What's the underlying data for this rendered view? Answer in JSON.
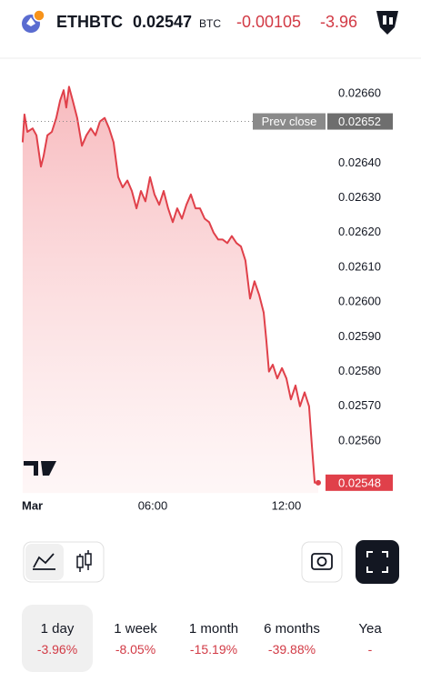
{
  "header": {
    "symbol": "ETHBTC",
    "price": "0.02547",
    "currency": "BTC",
    "change": "-0.00105",
    "change_percent": "-3.96"
  },
  "chart_data": {
    "type": "line",
    "color": "#e0404a",
    "x": [
      0.16,
      0.24,
      0.37,
      0.61,
      0.78,
      0.98,
      1.1,
      1.27,
      1.47,
      1.67,
      1.84,
      2.0,
      2.12,
      2.24,
      2.41,
      2.61,
      2.82,
      3.02,
      3.22,
      3.43,
      3.63,
      3.84,
      4.04,
      4.24,
      4.45,
      4.65,
      4.86,
      5.06,
      5.27,
      5.47,
      5.67,
      5.88,
      6.08,
      6.29,
      6.49,
      6.69,
      6.9,
      7.1,
      7.31,
      7.51,
      7.71,
      7.92,
      8.12,
      8.33,
      8.53,
      8.73,
      8.94,
      9.14,
      9.35,
      9.55,
      9.76,
      9.96,
      10.16,
      10.37,
      10.57,
      10.78,
      10.98,
      11.1,
      11.22,
      11.39,
      11.59,
      11.8,
      12.0,
      12.2,
      12.41,
      12.61,
      12.82,
      13.02,
      13.14,
      13.27,
      13.43
    ],
    "values": [
      0.02646,
      0.02654,
      0.02649,
      0.0265,
      0.02648,
      0.02639,
      0.02642,
      0.02648,
      0.02649,
      0.02653,
      0.02658,
      0.02661,
      0.02656,
      0.02662,
      0.02658,
      0.02653,
      0.02645,
      0.02648,
      0.0265,
      0.02648,
      0.02652,
      0.02653,
      0.0265,
      0.02646,
      0.02636,
      0.02633,
      0.02635,
      0.02632,
      0.02627,
      0.02632,
      0.02629,
      0.02636,
      0.02631,
      0.02628,
      0.02632,
      0.02627,
      0.02623,
      0.02627,
      0.02624,
      0.02628,
      0.02631,
      0.02627,
      0.02627,
      0.02624,
      0.02623,
      0.0262,
      0.02618,
      0.02618,
      0.02617,
      0.02619,
      0.02617,
      0.02616,
      0.02612,
      0.02601,
      0.02606,
      0.02602,
      0.02597,
      0.02589,
      0.0258,
      0.02582,
      0.02578,
      0.02581,
      0.02578,
      0.02572,
      0.02576,
      0.0257,
      0.02574,
      0.0257,
      0.02559,
      0.02548,
      0.02548
    ],
    "xlim": [
      0,
      13.9
    ],
    "xticks": [
      {
        "value": 0,
        "label": "Mar"
      },
      {
        "value": 6,
        "label": "06:00"
      },
      {
        "value": 12,
        "label": "12:00"
      }
    ],
    "ylim": [
      0.02545,
      0.0267
    ],
    "yticks": [
      {
        "value": 0.0266,
        "label": "0.02660"
      },
      {
        "value": 0.0264,
        "label": "0.02640"
      },
      {
        "value": 0.0263,
        "label": "0.02630"
      },
      {
        "value": 0.0262,
        "label": "0.02620"
      },
      {
        "value": 0.0261,
        "label": "0.02610"
      },
      {
        "value": 0.026,
        "label": "0.02600"
      },
      {
        "value": 0.0259,
        "label": "0.02590"
      },
      {
        "value": 0.0258,
        "label": "0.02580"
      },
      {
        "value": 0.0257,
        "label": "0.02570"
      },
      {
        "value": 0.0256,
        "label": "0.02560"
      }
    ],
    "prev_close": {
      "label": "Prev close",
      "value": 0.02652
    }
  },
  "ranges": [
    {
      "label": "1 day",
      "change": "-3.96%"
    },
    {
      "label": "1 week",
      "change": "-8.05%"
    },
    {
      "label": "1 month",
      "change": "-15.19%"
    },
    {
      "label": "6 months",
      "change": "-39.88%"
    },
    {
      "label": "Yea",
      "change": "-"
    }
  ]
}
